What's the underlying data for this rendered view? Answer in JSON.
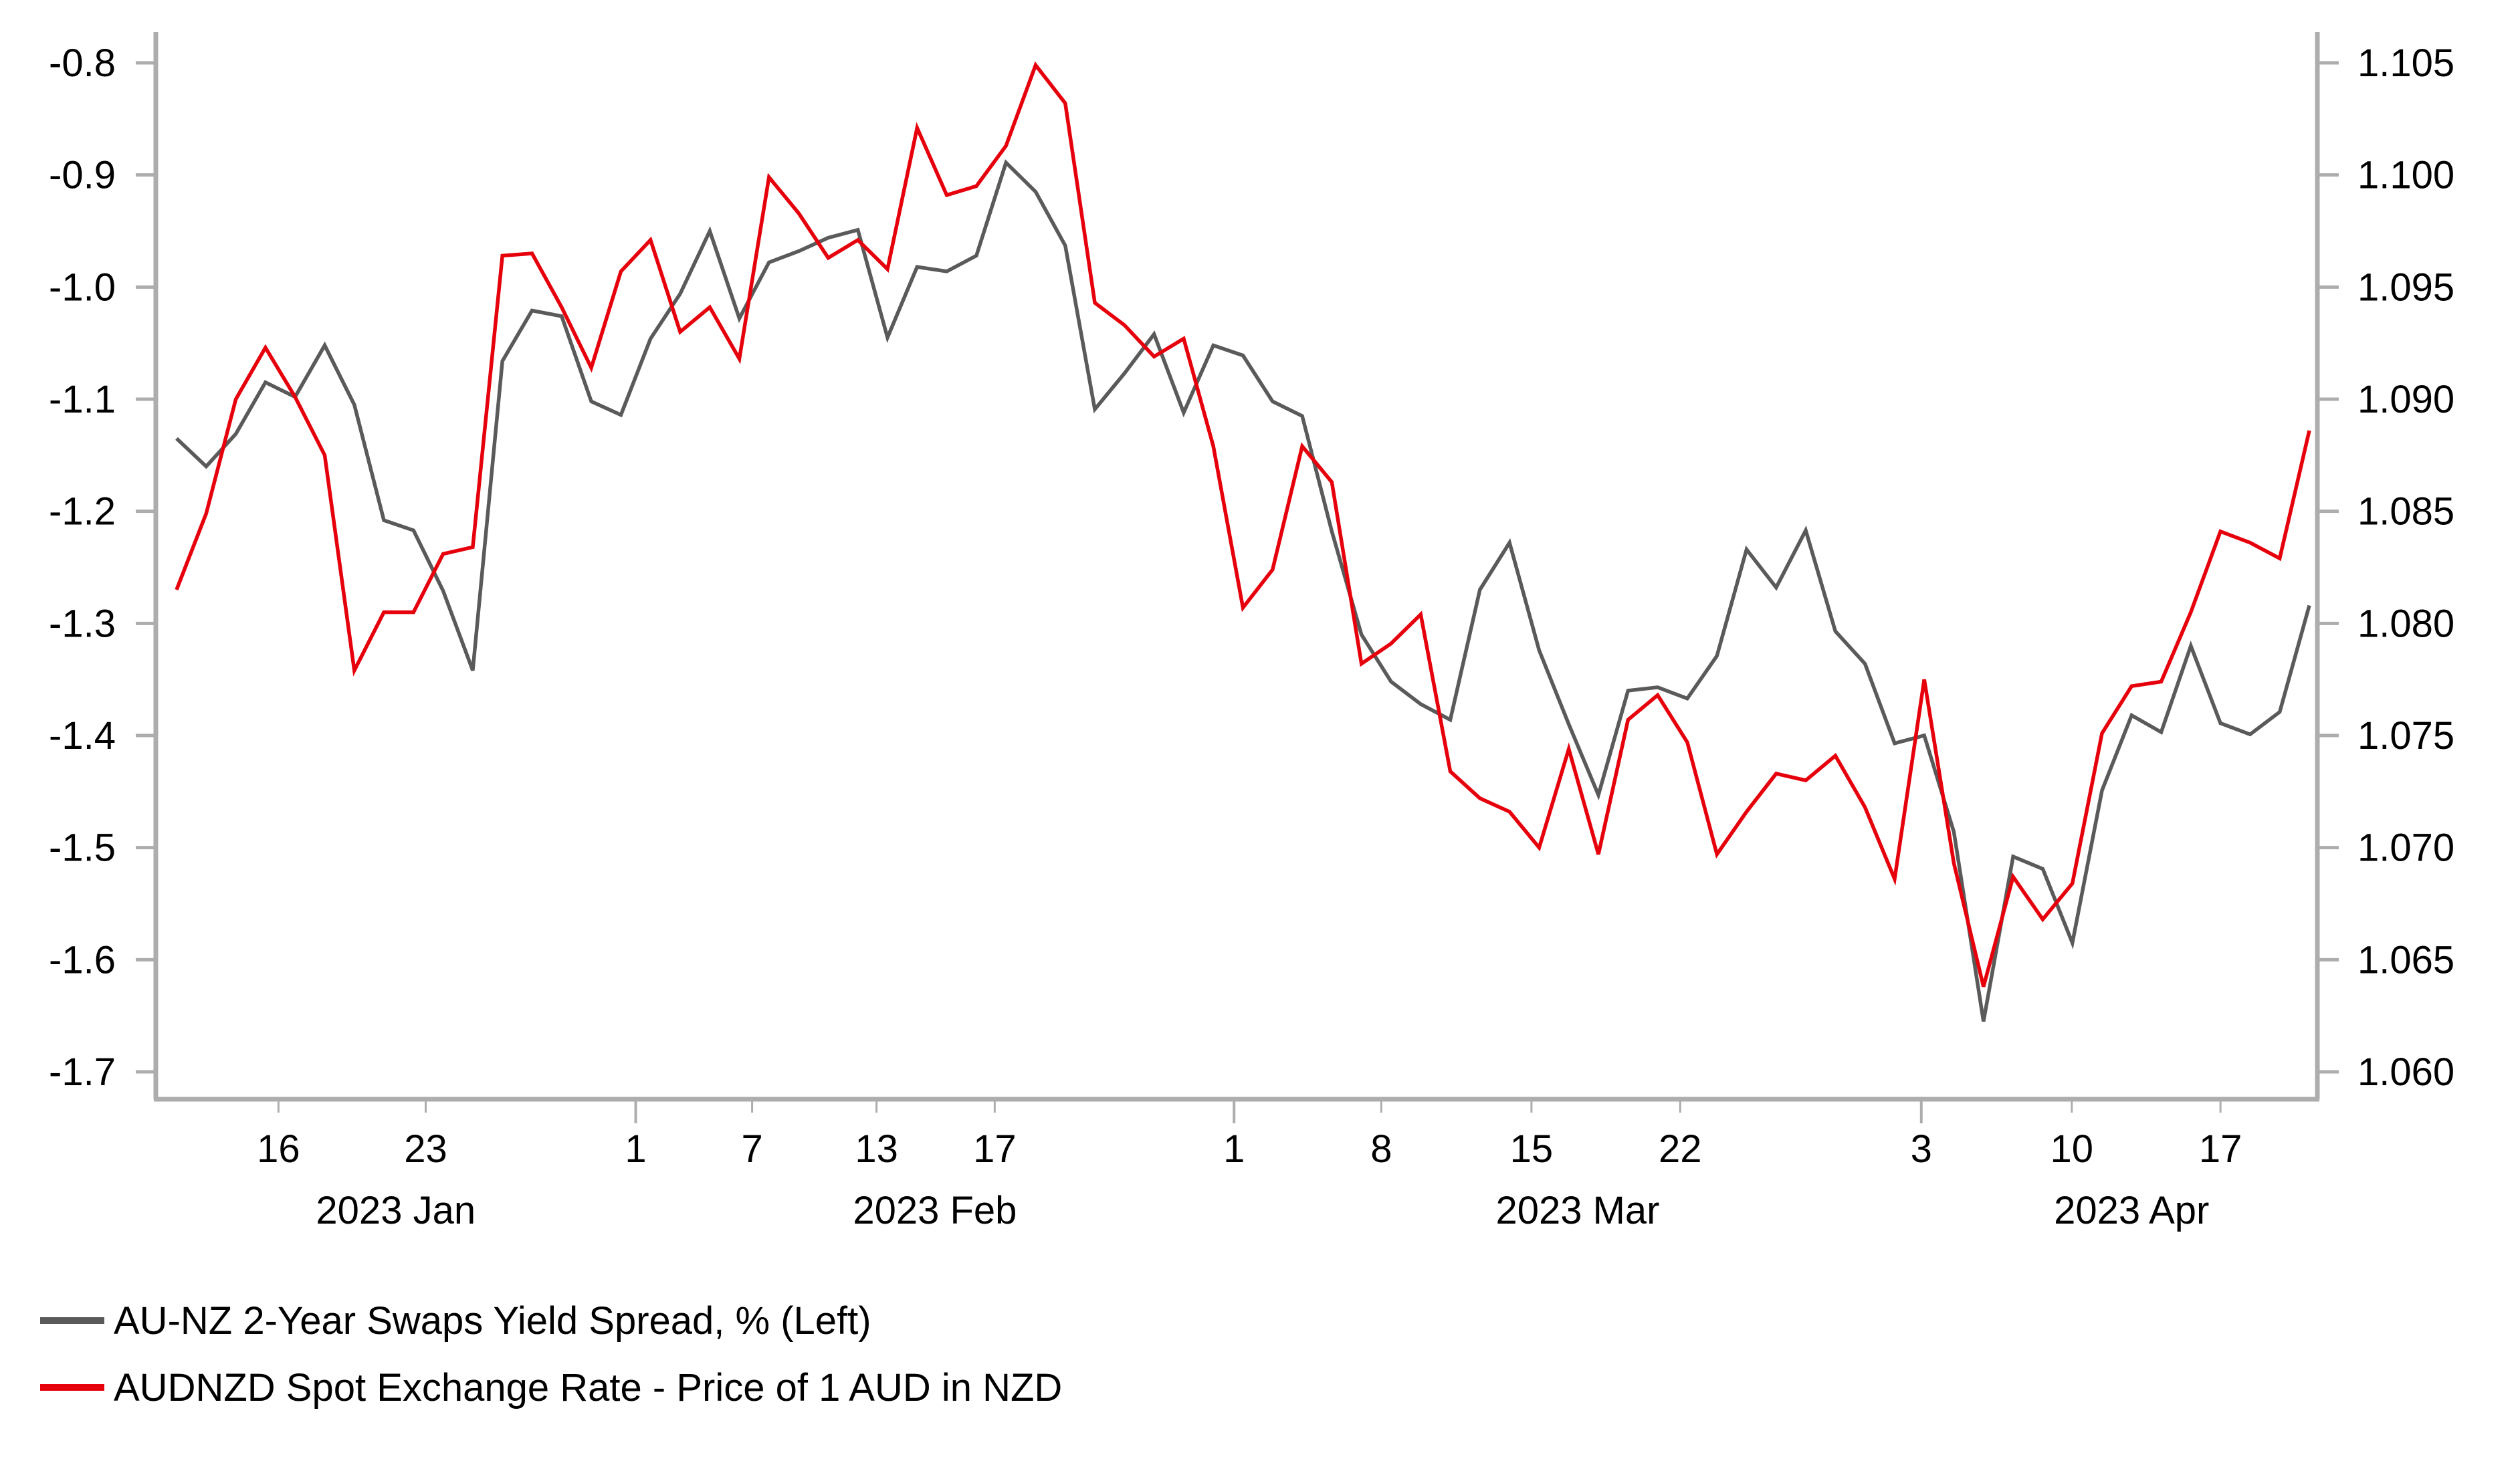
{
  "chart_data": {
    "type": "line",
    "title": "",
    "x_unit": "trading day index",
    "xlim": [
      0,
      72
    ],
    "y_left": {
      "ylim": [
        -1.7,
        -0.8
      ],
      "ticks": [
        "-0.8",
        "-0.9",
        "-1.0",
        "-1.1",
        "-1.2",
        "-1.3",
        "-1.4",
        "-1.5",
        "-1.6",
        "-1.7"
      ],
      "tick_values": [
        -0.8,
        -0.9,
        -1.0,
        -1.1,
        -1.2,
        -1.3,
        -1.4,
        -1.5,
        -1.6,
        -1.7
      ]
    },
    "y_right": {
      "ylim": [
        1.06,
        1.105
      ],
      "ticks": [
        "1.105",
        "1.100",
        "1.095",
        "1.090",
        "1.085",
        "1.080",
        "1.075",
        "1.070",
        "1.065",
        "1.060"
      ],
      "tick_values": [
        1.105,
        1.1,
        1.095,
        1.09,
        1.085,
        1.08,
        1.075,
        1.07,
        1.065,
        1.06
      ]
    },
    "x_ticks": [
      {
        "label": "16",
        "x": 3.44,
        "major": false
      },
      {
        "label": "23",
        "x": 8.41,
        "major": false
      },
      {
        "label": "1",
        "x": 15.5,
        "major": true
      },
      {
        "label": "7",
        "x": 19.43,
        "major": false
      },
      {
        "label": "13",
        "x": 23.63,
        "major": false
      },
      {
        "label": "17",
        "x": 27.62,
        "major": false
      },
      {
        "label": "1",
        "x": 35.7,
        "major": true
      },
      {
        "label": "8",
        "x": 40.67,
        "major": false
      },
      {
        "label": "15",
        "x": 45.74,
        "major": false
      },
      {
        "label": "22",
        "x": 50.76,
        "major": false
      },
      {
        "label": "3",
        "x": 58.9,
        "major": true
      },
      {
        "label": "10",
        "x": 63.98,
        "major": false
      },
      {
        "label": "17",
        "x": 69.0,
        "major": false
      }
    ],
    "month_labels": [
      {
        "label": "2023 Jan",
        "x": 7.4
      },
      {
        "label": "2023 Feb",
        "x": 25.6
      },
      {
        "label": "2023 Mar",
        "x": 47.3
      },
      {
        "label": "2023 Apr",
        "x": 66.0
      }
    ],
    "series": [
      {
        "name": "AU-NZ 2-Year Swaps Yield Spread, % (Left)",
        "axis": "left",
        "color": "#5a5a5a",
        "values": [
          -1.135,
          -1.16,
          -1.131,
          -1.085,
          -1.098,
          -1.052,
          -1.105,
          -1.208,
          -1.217,
          -1.271,
          -1.342,
          -1.066,
          -1.021,
          -1.026,
          -1.102,
          -1.114,
          -1.046,
          -1.006,
          -0.95,
          -1.028,
          -0.978,
          -0.968,
          -0.956,
          -0.949,
          -1.045,
          -0.982,
          -0.986,
          -0.972,
          -0.889,
          -0.915,
          -0.963,
          -1.109,
          -1.077,
          -1.042,
          -1.112,
          -1.052,
          -1.061,
          -1.102,
          -1.115,
          -1.218,
          -1.31,
          -1.352,
          -1.372,
          -1.386,
          -1.27,
          -1.228,
          -1.324,
          -1.39,
          -1.453,
          -1.36,
          -1.357,
          -1.367,
          -1.329,
          -1.234,
          -1.268,
          -1.217,
          -1.307,
          -1.336,
          -1.407,
          -1.4,
          -1.486,
          -1.655,
          -1.508,
          -1.519,
          -1.585,
          -1.449,
          -1.382,
          -1.397,
          -1.32,
          -1.389,
          -1.399,
          -1.379,
          -1.284
        ]
      },
      {
        "name": "AUDNZD Spot Exchange Rate - Price of 1 AUD in NZD",
        "axis": "right",
        "color": "#e6000b",
        "values": [
          1.0815,
          1.0849,
          1.09,
          1.0923,
          1.0901,
          1.0875,
          1.0779,
          1.0805,
          1.0805,
          1.0831,
          1.0834,
          1.0964,
          1.0965,
          1.0941,
          1.0914,
          1.0957,
          1.0971,
          1.093,
          1.0941,
          1.0918,
          1.0999,
          1.0983,
          1.0963,
          1.0971,
          1.0958,
          1.1021,
          1.0991,
          1.0995,
          1.1013,
          1.1049,
          1.1032,
          1.0943,
          1.0933,
          1.0919,
          1.0927,
          1.0879,
          1.0807,
          1.0824,
          1.0879,
          1.0863,
          1.0782,
          1.0791,
          1.0804,
          1.0734,
          1.0722,
          1.0716,
          1.07,
          1.0744,
          1.0697,
          1.0757,
          1.0768,
          1.0747,
          1.0697,
          1.0716,
          1.0733,
          1.073,
          1.0741,
          1.0718,
          1.0686,
          1.0775,
          1.0693,
          1.0638,
          1.0687,
          1.0668,
          1.0684,
          1.0751,
          1.0772,
          1.0774,
          1.0805,
          1.0841,
          1.0836,
          1.0829,
          1.0886
        ]
      }
    ],
    "legend_position": "bottom-left",
    "grid": false,
    "axis_color": "#adadad"
  }
}
